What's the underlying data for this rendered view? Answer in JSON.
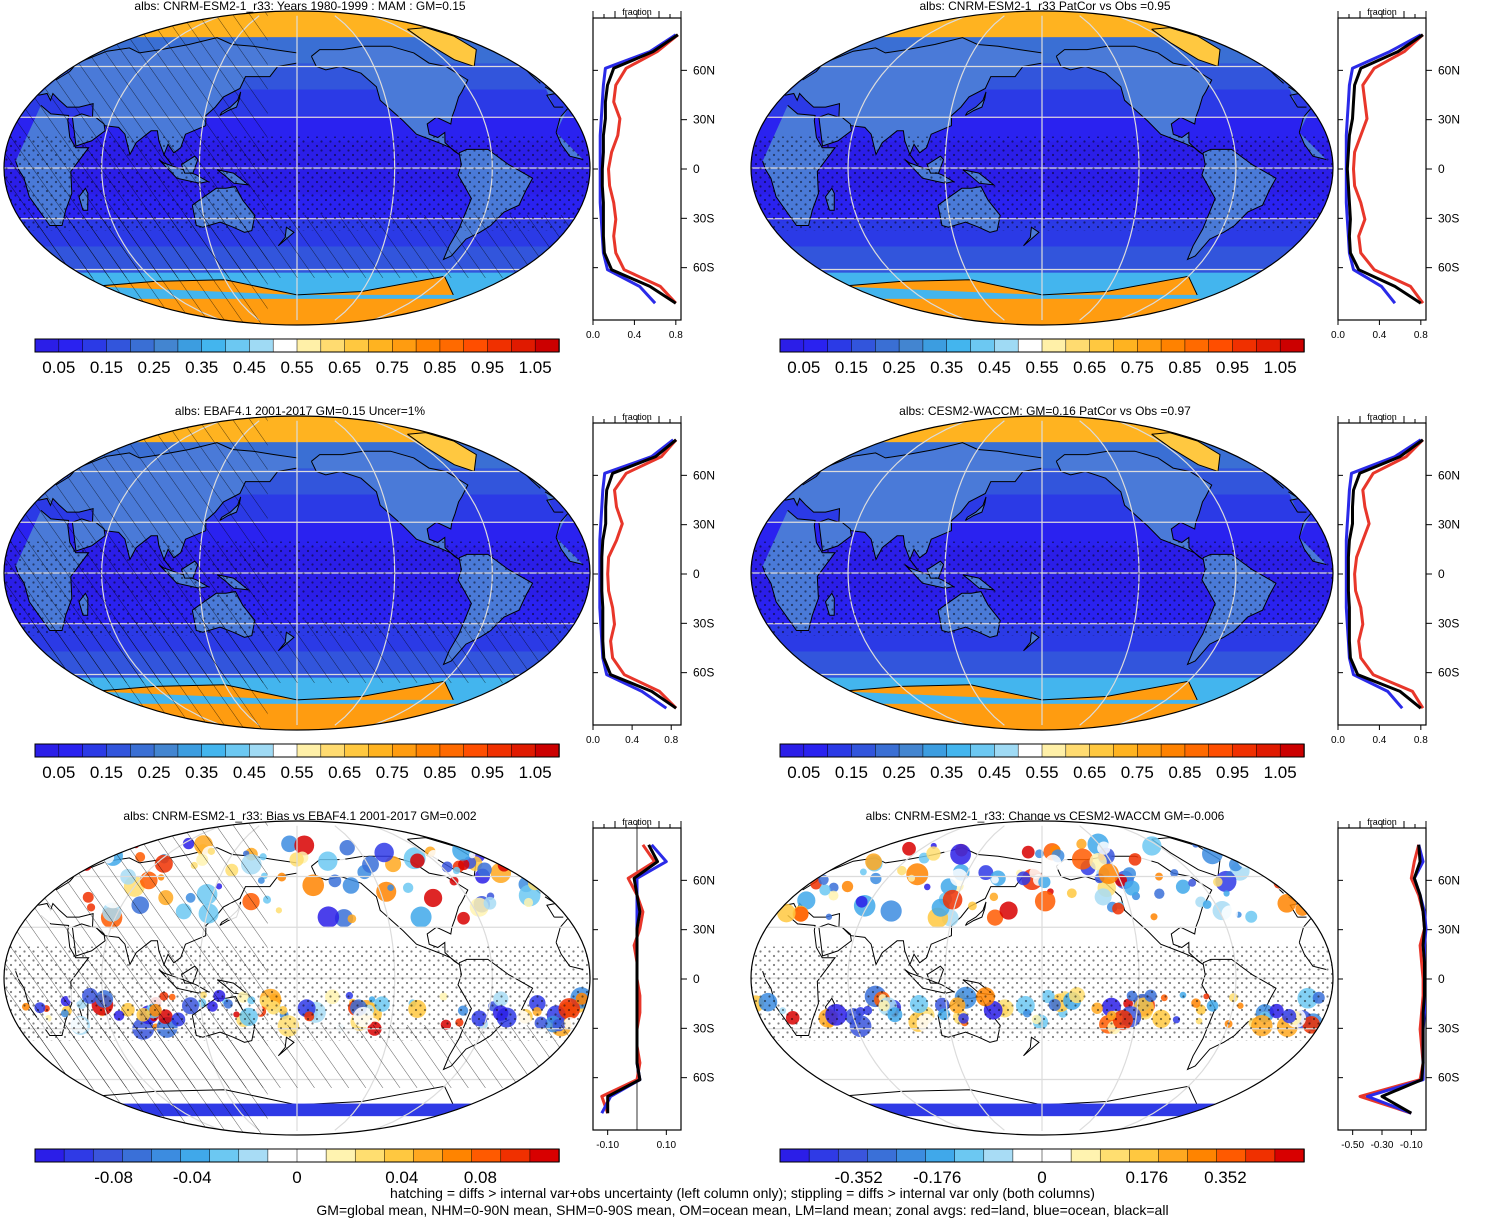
{
  "panels": [
    {
      "id": "p1",
      "title": "albs: CNRM-ESM2-1_r33: Years 1980-1999 : MAM : GM=0.15",
      "type": "abs",
      "colorbar": {
        "labels": [
          "0.05",
          "0.15",
          "0.25",
          "0.35",
          "0.45",
          "0.55",
          "0.65",
          "0.75",
          "0.85",
          "0.95",
          "1.05"
        ]
      },
      "zonal": {
        "title": "fraction",
        "xticks": [
          "0.0",
          "0.4",
          "0.8"
        ],
        "lat_labels": [
          "60N",
          "30N",
          "0",
          "30S",
          "60S"
        ]
      },
      "hatching": true,
      "stippling": true
    },
    {
      "id": "p2",
      "title": "albs: CNRM-ESM2-1_r33 PatCor vs Obs =0.95",
      "type": "abs",
      "colorbar": {
        "labels": [
          "0.05",
          "0.15",
          "0.25",
          "0.35",
          "0.45",
          "0.55",
          "0.65",
          "0.75",
          "0.85",
          "0.95",
          "1.05"
        ]
      },
      "zonal": {
        "title": "fraction",
        "xticks": [
          "0.0",
          "0.4",
          "0.8"
        ],
        "lat_labels": [
          "60N",
          "30N",
          "0",
          "30S",
          "60S"
        ]
      },
      "hatching": false,
      "stippling": true
    },
    {
      "id": "p3",
      "title": "albs: EBAF4.1 2001-2017 GM=0.15 Uncer=1%",
      "type": "abs",
      "colorbar": {
        "labels": [
          "0.05",
          "0.15",
          "0.25",
          "0.35",
          "0.45",
          "0.55",
          "0.65",
          "0.75",
          "0.85",
          "0.95",
          "1.05"
        ]
      },
      "zonal": {
        "title": "fraction",
        "xticks": [
          "0.0",
          "0.4",
          "0.8"
        ],
        "lat_labels": [
          "60N",
          "30N",
          "0",
          "30S",
          "60S"
        ]
      },
      "hatching": true,
      "stippling": true
    },
    {
      "id": "p4",
      "title": "albs: CESM2-WACCM: GM=0.16 PatCor vs Obs =0.97",
      "type": "abs",
      "colorbar": {
        "labels": [
          "0.05",
          "0.15",
          "0.25",
          "0.35",
          "0.45",
          "0.55",
          "0.65",
          "0.75",
          "0.85",
          "0.95",
          "1.05"
        ]
      },
      "zonal": {
        "title": "fraction",
        "xticks": [
          "0.0",
          "0.4",
          "0.8"
        ],
        "lat_labels": [
          "60N",
          "30N",
          "0",
          "30S",
          "60S"
        ]
      },
      "hatching": false,
      "stippling": true
    },
    {
      "id": "p5",
      "title": "albs: CNRM-ESM2-1_r33: Bias vs EBAF4.1 2001-2017 GM=0.002",
      "type": "diff",
      "colorbar": {
        "labels": [
          "-0.08",
          "-0.04",
          "0",
          "0.04",
          "0.08"
        ]
      },
      "zonal": {
        "title": "fraction",
        "xticks": [
          "-0.10",
          "0.10"
        ],
        "lat_labels": [
          "60N",
          "30N",
          "0",
          "30S",
          "60S"
        ]
      },
      "hatching": true,
      "stippling": true
    },
    {
      "id": "p6",
      "title": "albs: CNRM-ESM2-1_r33: Change vs CESM2-WACCM GM=-0.006",
      "type": "diff",
      "colorbar": {
        "labels": [
          "-0.352",
          "-0.176",
          "0",
          "0.176",
          "0.352"
        ]
      },
      "zonal": {
        "title": "fraction",
        "xticks": [
          "-0.50",
          "-0.30",
          "-0.10"
        ],
        "lat_labels": [
          "60N",
          "30N",
          "0",
          "30S",
          "60S"
        ]
      },
      "hatching": false,
      "stippling": true
    }
  ],
  "colors": {
    "abs": [
      "#2b1ee8",
      "#2a22f0",
      "#2b3ae6",
      "#3255dc",
      "#3a6fd4",
      "#4385d0",
      "#3c9de0",
      "#43b5ee",
      "#6cc8f2",
      "#9fdaf4",
      "#ffffff",
      "#fff0a8",
      "#ffdb70",
      "#ffc840",
      "#ffb320",
      "#ff9c10",
      "#ff8200",
      "#ff6a00",
      "#ff4e00",
      "#f03000",
      "#e01a00",
      "#cc0000"
    ],
    "diff": [
      "#2b1ee8",
      "#2f3ae6",
      "#3a55dc",
      "#3a70d8",
      "#3c8ce0",
      "#40a8ea",
      "#6cc8f2",
      "#a8dcf5",
      "#ffffff",
      "#ffffff",
      "#fff3b0",
      "#ffde70",
      "#ffc840",
      "#ffa820",
      "#ff8400",
      "#ff5a00",
      "#f03000",
      "#d80000"
    ],
    "land": "#e8362a",
    "ocean": "#2a2ae8",
    "all": "#000000"
  },
  "footer": {
    "line1": "hatching = diffs > internal var+obs uncertainty (left column only); stippling = diffs > internal var only (both columns)",
    "line2": "GM=global mean, NHM=0-90N mean, SHM=0-90S mean, OM=ocean mean, LM=land mean; zonal avgs: red=land, blue=ocean, black=all"
  },
  "chart_data": [
    {
      "type": "heatmap",
      "title": "albs: CNRM-ESM2-1_r33: Years 1980-1999 : MAM : GM=0.15",
      "colorbar_ticks": [
        0.05,
        0.15,
        0.25,
        0.35,
        0.45,
        0.55,
        0.65,
        0.75,
        0.85,
        0.95,
        1.05
      ],
      "zonal_profile": {
        "xlabel": "fraction",
        "xlim": [
          0,
          0.85
        ],
        "lat_ticks": [
          "60N",
          "30N",
          "0",
          "30S",
          "60S"
        ],
        "lat": [
          80,
          70,
          60,
          50,
          40,
          30,
          20,
          10,
          0,
          -10,
          -20,
          -30,
          -40,
          -50,
          -60,
          -70,
          -80
        ],
        "land": [
          0.82,
          0.62,
          0.32,
          0.22,
          0.2,
          0.26,
          0.24,
          0.18,
          0.15,
          0.16,
          0.2,
          0.22,
          0.2,
          0.22,
          0.3,
          0.65,
          0.8
        ],
        "ocean": [
          0.8,
          0.55,
          0.12,
          0.1,
          0.09,
          0.08,
          0.07,
          0.07,
          0.07,
          0.07,
          0.07,
          0.08,
          0.09,
          0.1,
          0.14,
          0.45,
          0.6
        ],
        "all": [
          0.82,
          0.58,
          0.2,
          0.14,
          0.12,
          0.12,
          0.1,
          0.1,
          0.09,
          0.09,
          0.1,
          0.1,
          0.1,
          0.11,
          0.18,
          0.55,
          0.8
        ]
      }
    },
    {
      "type": "heatmap",
      "title": "albs: CNRM-ESM2-1_r33 PatCor vs Obs =0.95",
      "colorbar_ticks": [
        0.05,
        0.15,
        0.25,
        0.35,
        0.45,
        0.55,
        0.65,
        0.75,
        0.85,
        0.95,
        1.05
      ],
      "zonal_profile": {
        "xlabel": "fraction",
        "xlim": [
          0,
          0.85
        ],
        "lat_ticks": [
          "60N",
          "30N",
          "0",
          "30S",
          "60S"
        ],
        "lat": [
          80,
          70,
          60,
          50,
          40,
          30,
          20,
          10,
          0,
          -10,
          -20,
          -30,
          -40,
          -50,
          -60,
          -70,
          -80
        ],
        "land": [
          0.82,
          0.64,
          0.35,
          0.24,
          0.26,
          0.28,
          0.22,
          0.16,
          0.15,
          0.16,
          0.22,
          0.26,
          0.2,
          0.22,
          0.35,
          0.7,
          0.82
        ],
        "ocean": [
          0.8,
          0.5,
          0.14,
          0.11,
          0.1,
          0.09,
          0.08,
          0.08,
          0.08,
          0.08,
          0.08,
          0.09,
          0.1,
          0.11,
          0.15,
          0.42,
          0.55
        ],
        "all": [
          0.82,
          0.58,
          0.22,
          0.16,
          0.15,
          0.14,
          0.11,
          0.1,
          0.09,
          0.1,
          0.11,
          0.12,
          0.11,
          0.12,
          0.2,
          0.55,
          0.8
        ]
      }
    },
    {
      "type": "heatmap",
      "title": "albs: EBAF4.1 2001-2017 GM=0.15 Uncer=1%",
      "colorbar_ticks": [
        0.05,
        0.15,
        0.25,
        0.35,
        0.45,
        0.55,
        0.65,
        0.75,
        0.85,
        0.95,
        1.05
      ],
      "zonal_profile": {
        "xlabel": "fraction",
        "xlim": [
          0,
          0.9
        ],
        "lat_ticks": [
          "60N",
          "30N",
          "0",
          "30S",
          "60S"
        ],
        "lat": [
          80,
          70,
          60,
          50,
          40,
          30,
          20,
          10,
          0,
          -10,
          -20,
          -30,
          -40,
          -50,
          -60,
          -70,
          -80
        ],
        "land": [
          0.85,
          0.7,
          0.34,
          0.22,
          0.24,
          0.3,
          0.24,
          0.16,
          0.15,
          0.16,
          0.2,
          0.22,
          0.18,
          0.2,
          0.32,
          0.68,
          0.85
        ],
        "ocean": [
          0.82,
          0.6,
          0.12,
          0.1,
          0.09,
          0.08,
          0.07,
          0.07,
          0.07,
          0.07,
          0.07,
          0.08,
          0.09,
          0.1,
          0.14,
          0.5,
          0.75
        ],
        "all": [
          0.85,
          0.64,
          0.2,
          0.14,
          0.13,
          0.13,
          0.1,
          0.09,
          0.09,
          0.09,
          0.1,
          0.1,
          0.1,
          0.11,
          0.18,
          0.6,
          0.85
        ]
      }
    },
    {
      "type": "heatmap",
      "title": "albs: CESM2-WACCM: GM=0.16 PatCor vs Obs =0.97",
      "colorbar_ticks": [
        0.05,
        0.15,
        0.25,
        0.35,
        0.45,
        0.55,
        0.65,
        0.75,
        0.85,
        0.95,
        1.05
      ],
      "zonal_profile": {
        "xlabel": "fraction",
        "xlim": [
          0,
          0.85
        ],
        "lat_ticks": [
          "60N",
          "30N",
          "0",
          "30S",
          "60S"
        ],
        "lat": [
          80,
          70,
          60,
          50,
          40,
          30,
          20,
          10,
          0,
          -10,
          -20,
          -30,
          -40,
          -50,
          -60,
          -70,
          -80
        ],
        "land": [
          0.82,
          0.66,
          0.34,
          0.24,
          0.26,
          0.3,
          0.24,
          0.18,
          0.16,
          0.17,
          0.22,
          0.24,
          0.2,
          0.22,
          0.34,
          0.72,
          0.82
        ],
        "ocean": [
          0.8,
          0.55,
          0.13,
          0.11,
          0.1,
          0.09,
          0.08,
          0.08,
          0.08,
          0.08,
          0.08,
          0.09,
          0.1,
          0.11,
          0.15,
          0.48,
          0.62
        ],
        "all": [
          0.82,
          0.6,
          0.21,
          0.15,
          0.14,
          0.14,
          0.11,
          0.1,
          0.1,
          0.1,
          0.11,
          0.11,
          0.11,
          0.12,
          0.19,
          0.6,
          0.8
        ]
      }
    },
    {
      "type": "heatmap",
      "title": "albs: CNRM-ESM2-1_r33: Bias vs EBAF4.1 2001-2017 GM=0.002",
      "colorbar_ticks": [
        -0.08,
        -0.04,
        0,
        0.04,
        0.08
      ],
      "zonal_profile": {
        "xlabel": "fraction",
        "xlim": [
          -0.15,
          0.15
        ],
        "lat_ticks": [
          "60N",
          "30N",
          "0",
          "30S",
          "60S"
        ],
        "lat": [
          80,
          70,
          60,
          50,
          40,
          30,
          20,
          10,
          0,
          -10,
          -20,
          -30,
          -40,
          -50,
          -60,
          -70,
          -80
        ],
        "land": [
          0.02,
          0.06,
          -0.03,
          0.0,
          0.02,
          0.01,
          -0.01,
          0.0,
          0.0,
          0.01,
          0.01,
          0.0,
          0.0,
          0.01,
          0.0,
          -0.12,
          -0.1
        ],
        "ocean": [
          0.05,
          0.1,
          0.0,
          0.0,
          0.0,
          0.0,
          0.0,
          0.0,
          0.0,
          0.0,
          0.0,
          0.0,
          0.0,
          0.0,
          0.01,
          -0.09,
          -0.12
        ],
        "all": [
          0.04,
          0.07,
          -0.01,
          0.0,
          0.01,
          0.0,
          0.0,
          0.0,
          0.0,
          0.0,
          0.0,
          0.0,
          0.0,
          0.0,
          0.01,
          -0.1,
          -0.1
        ]
      }
    },
    {
      "type": "heatmap",
      "title": "albs: CNRM-ESM2-1_r33: Change vs CESM2-WACCM GM=-0.006",
      "colorbar_ticks": [
        -0.352,
        -0.176,
        0,
        0.176,
        0.352
      ],
      "zonal_profile": {
        "xlabel": "fraction",
        "xlim": [
          -0.6,
          0.0
        ],
        "lat_ticks": [
          "60N",
          "30N",
          "0",
          "30S",
          "60S"
        ],
        "lat": [
          80,
          70,
          60,
          50,
          40,
          30,
          20,
          10,
          0,
          -10,
          -20,
          -30,
          -40,
          -50,
          -60,
          -70,
          -80
        ],
        "land": [
          -0.05,
          -0.08,
          -0.1,
          -0.05,
          -0.02,
          -0.01,
          -0.04,
          -0.03,
          -0.02,
          -0.02,
          -0.03,
          -0.04,
          -0.03,
          -0.02,
          -0.04,
          -0.45,
          -0.1
        ],
        "ocean": [
          -0.05,
          -0.02,
          -0.08,
          -0.04,
          -0.01,
          0.0,
          -0.01,
          -0.01,
          -0.01,
          -0.01,
          -0.01,
          -0.02,
          -0.02,
          -0.02,
          -0.02,
          -0.4,
          -0.1
        ],
        "all": [
          -0.05,
          -0.04,
          -0.08,
          -0.04,
          -0.02,
          -0.01,
          -0.02,
          -0.01,
          -0.01,
          -0.01,
          -0.02,
          -0.02,
          -0.02,
          -0.02,
          -0.03,
          -0.3,
          -0.1
        ]
      }
    }
  ]
}
